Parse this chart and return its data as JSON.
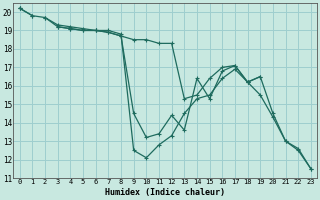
{
  "xlabel": "Humidex (Indice chaleur)",
  "xlim": [
    -0.5,
    23.5
  ],
  "ylim": [
    11,
    20.5
  ],
  "yticks": [
    11,
    12,
    13,
    14,
    15,
    16,
    17,
    18,
    19,
    20
  ],
  "xticks": [
    0,
    1,
    2,
    3,
    4,
    5,
    6,
    7,
    8,
    9,
    10,
    11,
    12,
    13,
    14,
    15,
    16,
    17,
    18,
    19,
    20,
    21,
    22,
    23
  ],
  "bg_color": "#c8e8e0",
  "grid_color": "#9ecece",
  "line_color": "#1e6b5e",
  "series": [
    [
      20.2,
      19.8,
      null,
      19.2,
      19.1,
      19.0,
      19.0,
      18.9,
      18.7,
      18.5,
      18.5,
      18.3,
      18.3,
      15.3,
      15.5,
      16.4,
      17.0,
      17.1,
      16.2,
      16.5,
      14.5,
      13.0,
      12.5,
      11.5
    ],
    [
      20.2,
      19.8,
      19.7,
      19.2,
      19.1,
      19.0,
      19.0,
      18.9,
      18.7,
      14.5,
      13.2,
      13.4,
      14.4,
      13.6,
      16.4,
      15.3,
      16.8,
      17.1,
      16.2,
      15.5,
      14.3,
      13.0,
      12.6,
      11.5
    ],
    [
      20.2,
      null,
      19.7,
      19.3,
      19.2,
      19.1,
      19.0,
      19.0,
      18.8,
      12.5,
      12.1,
      12.8,
      13.3,
      14.5,
      15.3,
      15.5,
      16.4,
      16.9,
      16.2,
      16.5,
      null,
      null,
      null,
      null
    ]
  ]
}
